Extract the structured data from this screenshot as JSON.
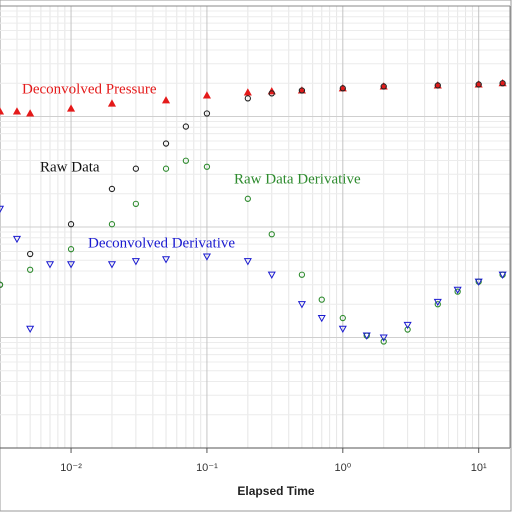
{
  "chart_data": {
    "type": "scatter",
    "xlabel": "Elapsed Time",
    "xscale": "log",
    "yscale": "log",
    "xlim": [
      0.003,
      17
    ],
    "ylim": [
      1,
      10000
    ],
    "xticks": [
      {
        "value": 0.01,
        "label": "10⁻²"
      },
      {
        "value": 0.1,
        "label": "10⁻¹"
      },
      {
        "value": 1,
        "label": "10⁰"
      },
      {
        "value": 10,
        "label": "10¹"
      }
    ],
    "grid": true,
    "series": [
      {
        "name": "Deconvolved Pressure",
        "color": "#e41a1a",
        "marker": "triangle-up",
        "x": [
          0.003,
          0.004,
          0.005,
          0.01,
          0.02,
          0.05,
          0.1,
          0.2,
          0.3,
          0.5,
          1,
          2,
          5,
          10,
          15
        ],
        "values": [
          1110,
          1110,
          1065,
          1180,
          1310,
          1400,
          1550,
          1650,
          1690,
          1720,
          1800,
          1870,
          1910,
          1950,
          2000
        ]
      },
      {
        "name": "Raw Data",
        "color": "#222222",
        "marker": "circle",
        "x": [
          0.003,
          0.005,
          0.01,
          0.02,
          0.03,
          0.05,
          0.07,
          0.1,
          0.2,
          0.3,
          0.5,
          1,
          2,
          5,
          10,
          15
        ],
        "values": [
          30,
          57,
          106,
          221,
          337,
          569,
          811,
          1065,
          1460,
          1620,
          1720,
          1800,
          1870,
          1910,
          1950,
          2000
        ]
      },
      {
        "name": "Raw Data Derivative",
        "color": "#2e8b2e",
        "marker": "circle",
        "x": [
          0.003,
          0.005,
          0.01,
          0.02,
          0.03,
          0.05,
          0.07,
          0.1,
          0.2,
          0.3,
          0.5,
          0.7,
          1,
          1.5,
          2,
          3,
          5,
          7,
          10,
          15
        ],
        "values": [
          30,
          41,
          63,
          106,
          162,
          337,
          398,
          351,
          180,
          86,
          37,
          22,
          15,
          10.4,
          9.2,
          11.8,
          20,
          26,
          32,
          37
        ]
      },
      {
        "name": "Deconvolved Derivative",
        "color": "#1a1ad0",
        "marker": "triangle-down",
        "x": [
          0.003,
          0.004,
          0.005,
          0.007,
          0.01,
          0.02,
          0.03,
          0.05,
          0.1,
          0.2,
          0.3,
          0.5,
          0.7,
          1,
          1.5,
          2,
          3,
          5,
          7,
          10,
          15
        ],
        "values": [
          146,
          78,
          12,
          46,
          46,
          46,
          49,
          51,
          54,
          49,
          37,
          20,
          15,
          12,
          10.4,
          10,
          13,
          21,
          27,
          32,
          37
        ]
      }
    ]
  }
}
